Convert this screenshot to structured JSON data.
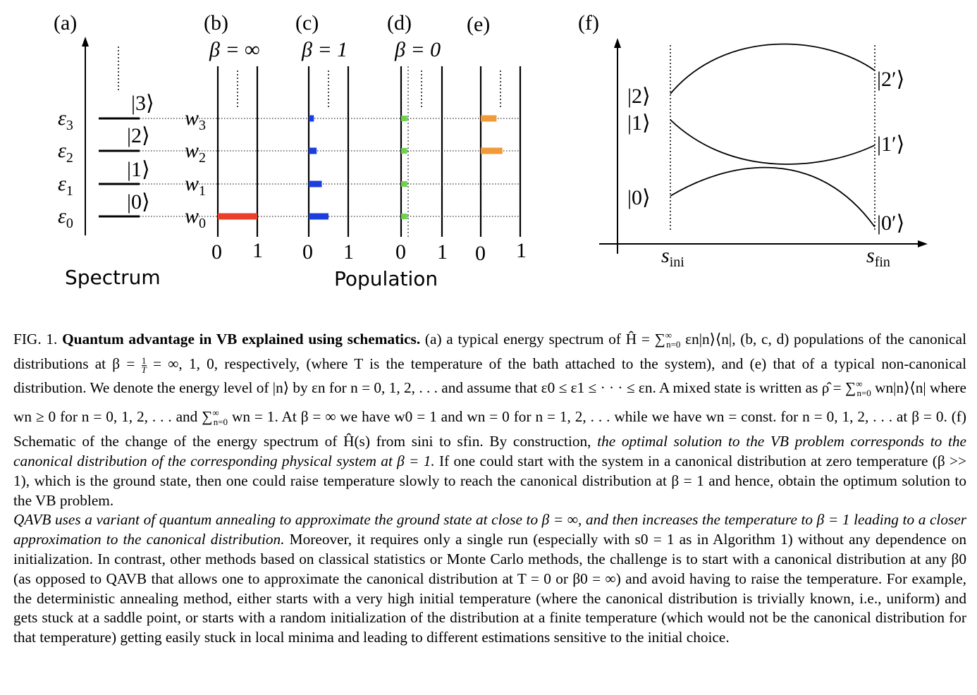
{
  "panels": {
    "a": "(a)",
    "b": "(b)",
    "c": "(c)",
    "d": "(d)",
    "e": "(e)",
    "f": "(f)"
  },
  "betas": {
    "b": "β = ∞",
    "c": "β = 1",
    "d": "β = 0"
  },
  "energy_labels": [
    "ε0",
    "ε1",
    "ε2",
    "ε3"
  ],
  "state_labels": [
    "|0⟩",
    "|1⟩",
    "|2⟩",
    "|3⟩"
  ],
  "weight_labels": [
    "w0",
    "w1",
    "w2",
    "w3"
  ],
  "axis_ticks": [
    "0",
    "1"
  ],
  "xlabels": {
    "spectrum": "Spectrum",
    "population": "Population"
  },
  "panel_f": {
    "ini_states": [
      "|2⟩",
      "|1⟩",
      "|0⟩"
    ],
    "fin_states": [
      "|2′⟩",
      "|1′⟩",
      "|0′⟩"
    ],
    "s_ini": "s",
    "s_ini_sub": "ini",
    "s_fin": "s",
    "s_fin_sub": "fin"
  },
  "colors": {
    "beta_inf": "#e8402a",
    "beta_one": "#1a3de0",
    "beta_zero": "#6cd44a",
    "noncanonical": "#f09a3a"
  },
  "populations": {
    "beta_inf": [
      1,
      0,
      0,
      0
    ],
    "beta_one": [
      0.5,
      0.33,
      0.2,
      0.13
    ],
    "beta_zero": [
      0.15,
      0.15,
      0.15,
      0.15
    ],
    "noncanonical": [
      0,
      0,
      0.55,
      0.4
    ]
  },
  "caption": {
    "fig_label": "FIG. 1.",
    "title": "Quantum advantage in VB explained using schematics.",
    "p1": [
      " (a) a typical energy spectrum of Ĥ = ∑",
      "∞",
      "n=0",
      " εn|n⟩⟨n|, (b, c, d) populations of the canonical distributions at β = ",
      "1",
      "T",
      " = ∞, 1, 0, respectively, (where T is the temperature of the bath attached to the system), and (e) that of a typical non-canonical distribution. We denote the energy level of |n⟩ by εn for n = 0, 1, 2, . . . and assume that ε0 ≤ ε1 ≤ · · · ≤ εn. A mixed state is written as ρ̂ = ∑",
      "∞",
      "n=0",
      " wn|n⟩⟨n| where wn ≥ 0 for n = 0, 1, 2, . . . and ∑",
      "∞",
      "n=0",
      " wn = 1. At β = ∞ we have w0 = 1 and wn = 0 for n = 1, 2, . . . while we have wn = const. for n = 0, 1, 2, . . . at β = 0. (f) Schematic of the change of the energy spectrum of Ĥ(s) from sini to sfin. By construction, ",
      "the optimal solution to the VB problem corresponds to the canonical distribution of the corresponding physical system at β = 1.",
      " If one could start with the system in a canonical distribution at zero temperature (β >> 1), which is the ground state, then one could raise temperature slowly to reach the canonical distribution at β = 1 and hence, obtain the optimum solution to the VB problem."
    ],
    "p2_italic": "QAVB uses a variant of quantum annealing to approximate the ground state at close to β = ∞, and then increases the temperature to β = 1 leading to a closer approximation to the canonical distribution.",
    "p2_rest": " Moreover, it requires only a single run (especially with s0 = 1 as in Algorithm 1) without any dependence on initialization. In contrast, other methods based on classical statistics or Monte Carlo methods, the challenge is to start with a canonical distribution at any β0 (as opposed to QAVB that allows one to approximate the canonical distribution at T = 0 or β0 = ∞) and avoid having to raise the temperature. For example, the deterministic annealing method, either starts with a very high initial temperature (where the canonical distribution is trivially known, i.e., uniform) and gets stuck at a saddle point, or starts with a random initialization of the distribution at a finite temperature (which would not be the canonical distribution for that temperature) getting easily stuck in local minima and leading to different estimations sensitive to the initial choice."
  }
}
